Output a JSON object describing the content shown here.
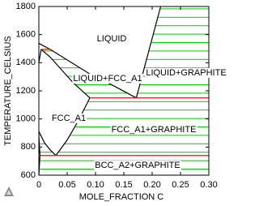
{
  "chart_data": {
    "type": "phase-diagram",
    "xlabel": "MOLE_FRACTION C",
    "ylabel": "TEMPERATURE_CELSIUS",
    "xlim": [
      0,
      0.3
    ],
    "ylim": [
      600,
      1800
    ],
    "xticks": [
      0,
      0.05,
      {
        "value": 0.1,
        "label": "0.10"
      },
      0.15,
      {
        "value": 0.2,
        "label": "0.20"
      },
      0.25,
      {
        "value": 0.3,
        "label": "0.30"
      }
    ],
    "yticks": [
      600,
      800,
      1000,
      1200,
      1400,
      1600,
      1800
    ],
    "tie_line_color": "#00cc00",
    "regions": [
      "LIQUID",
      "LIQUID+FCC_A1",
      "LIQUID+GRAPHITE",
      "FCC_A1",
      "FCC_A1+GRAPHITE",
      "BCC_A2+GRAPHITE"
    ],
    "lines": [
      {
        "color": "#000000",
        "x": [
          0,
          0.02,
          0.05,
          0.09,
          0.13,
          0.172
        ],
        "y": [
          1538,
          1495,
          1420,
          1320,
          1240,
          1150
        ]
      },
      {
        "color": "#000000",
        "x": [
          0.004,
          0.02,
          0.04,
          0.06,
          0.09
        ],
        "y": [
          1495,
          1440,
          1350,
          1260,
          1150
        ]
      },
      {
        "color": "#000000",
        "x": [
          0,
          0.003,
          0.004
        ],
        "y": [
          1400,
          1470,
          1495
        ]
      },
      {
        "color": "#000000",
        "x": [
          0.172,
          0.215
        ],
        "y": [
          1150,
          1800
        ]
      },
      {
        "color": "#000000",
        "x": [
          0.03,
          0.05,
          0.07,
          0.09
        ],
        "y": [
          740,
          850,
          990,
          1150
        ]
      },
      {
        "color": "#000000",
        "x": [
          0,
          0.01,
          0.02,
          0.03
        ],
        "y": [
          912,
          830,
          780,
          740
        ]
      },
      {
        "color": "#000000",
        "x": [
          0,
          0.002,
          0
        ],
        "y": [
          880,
          740,
          600
        ]
      },
      {
        "color": "#ff0000",
        "x": [
          0.09,
          0.3
        ],
        "y": [
          1150,
          1150
        ]
      },
      {
        "color": "#ff0000",
        "x": [
          0.002,
          0.3
        ],
        "y": [
          740,
          740
        ]
      },
      {
        "color": "#ff0000",
        "x": [
          0.004,
          0.02
        ],
        "y": [
          1495,
          1495
        ]
      }
    ]
  }
}
